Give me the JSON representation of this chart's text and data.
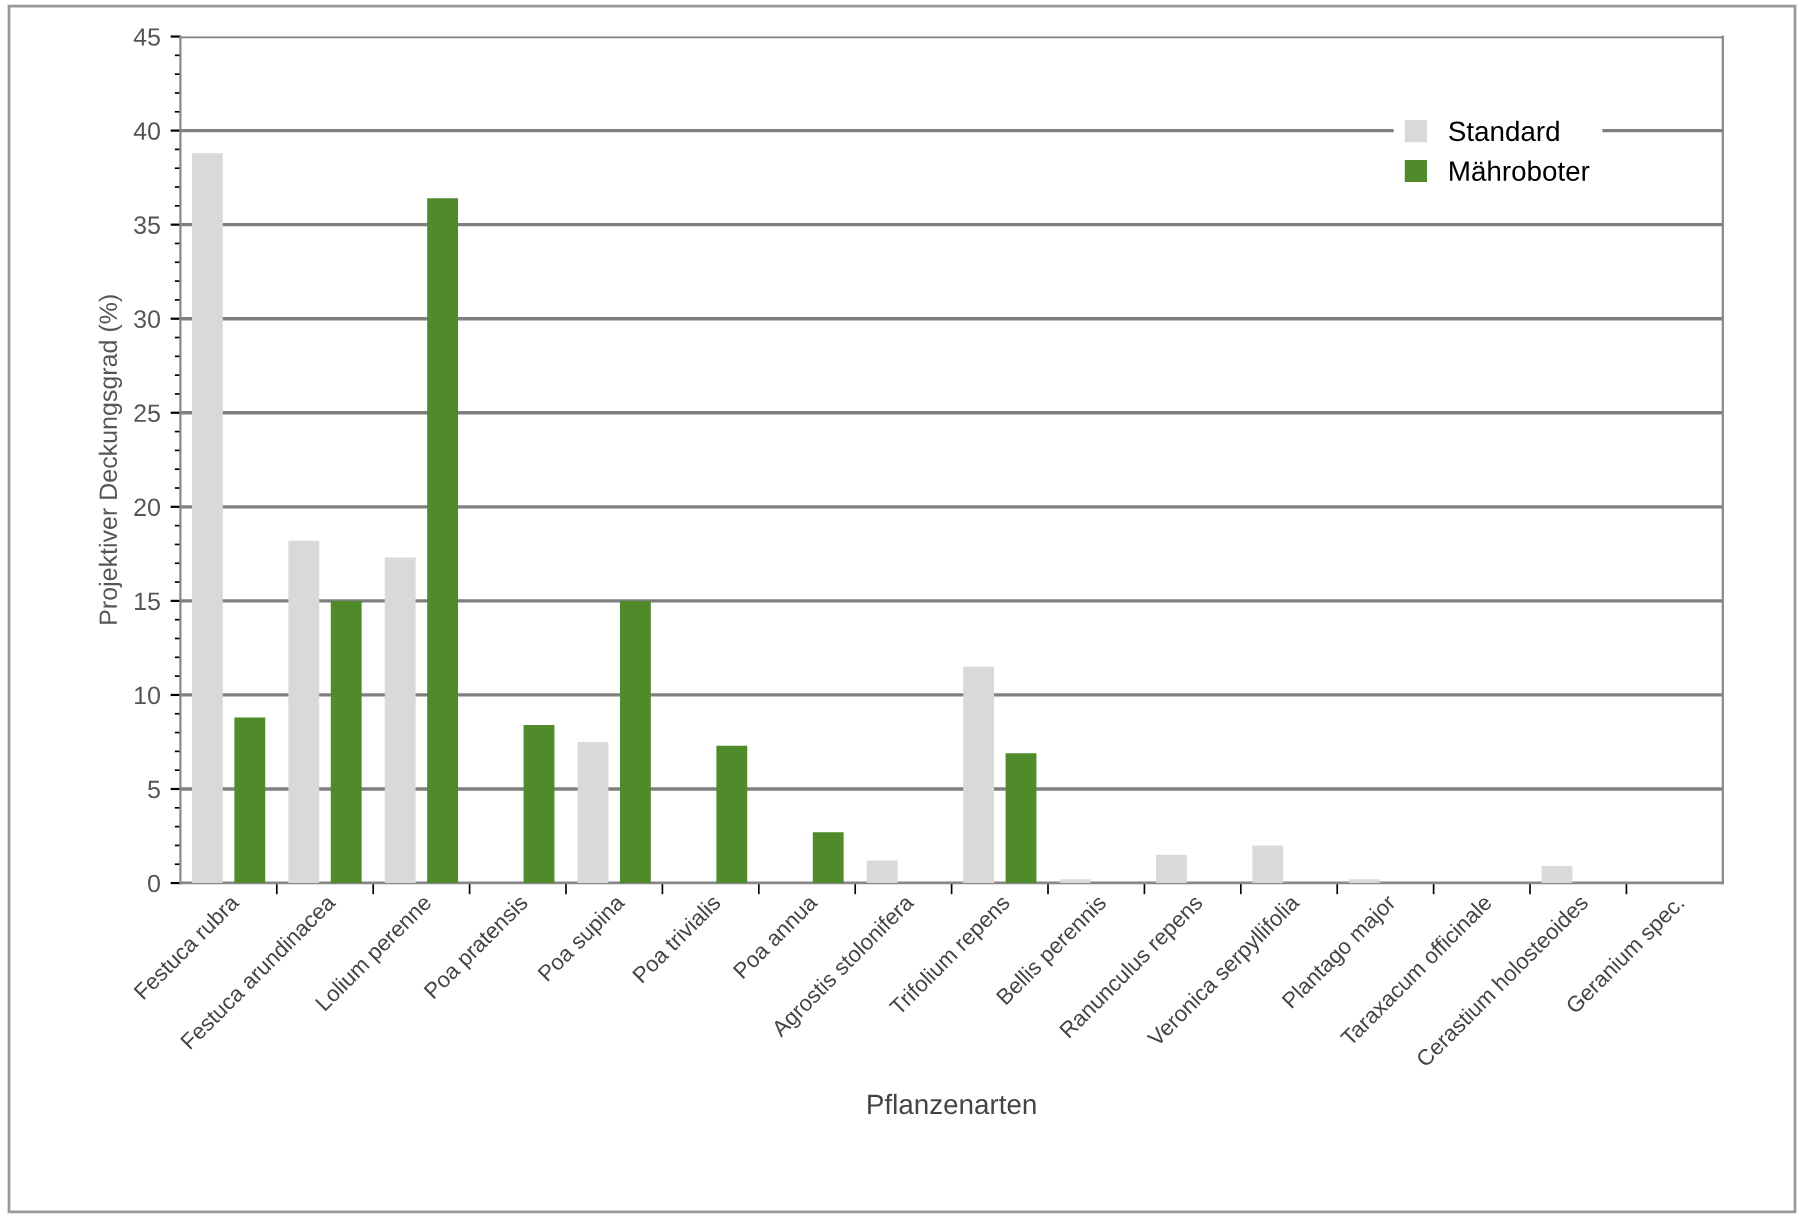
{
  "chart_data": {
    "type": "bar",
    "xlabel": "Pflanzenarten",
    "ylabel": "Projektiver Deckungsgrad (%)",
    "categories": [
      "Festuca rubra",
      "Festuca arundinacea",
      "Lolium perenne",
      "Poa pratensis",
      "Poa supina",
      "Poa trivialis",
      "Poa annua",
      "Agrostis stolonifera",
      "Trifolium repens",
      "Bellis perennis",
      "Ranunculus repens",
      "Veronica serpyllifolia",
      "Plantago major",
      "Taraxacum officinale",
      "Cerastium holosteoides",
      "Geranium spec."
    ],
    "series": [
      {
        "name": "Standard",
        "color": "#d9d9d9",
        "values": [
          38.8,
          18.2,
          17.3,
          0,
          7.5,
          0,
          0,
          1.2,
          11.5,
          0.2,
          1.5,
          2.0,
          0.2,
          0,
          0.9,
          0
        ]
      },
      {
        "name": "Mähroboter",
        "color": "#4f8a2b",
        "values": [
          8.8,
          15.0,
          36.4,
          8.4,
          15.0,
          7.3,
          2.7,
          0,
          6.9,
          0,
          0,
          0,
          0,
          0,
          0,
          0
        ]
      }
    ],
    "ylim": [
      0,
      45
    ],
    "yticks": [
      0,
      5,
      10,
      15,
      20,
      25,
      30,
      35,
      40,
      45
    ],
    "grid": "y",
    "legend": "top right"
  }
}
